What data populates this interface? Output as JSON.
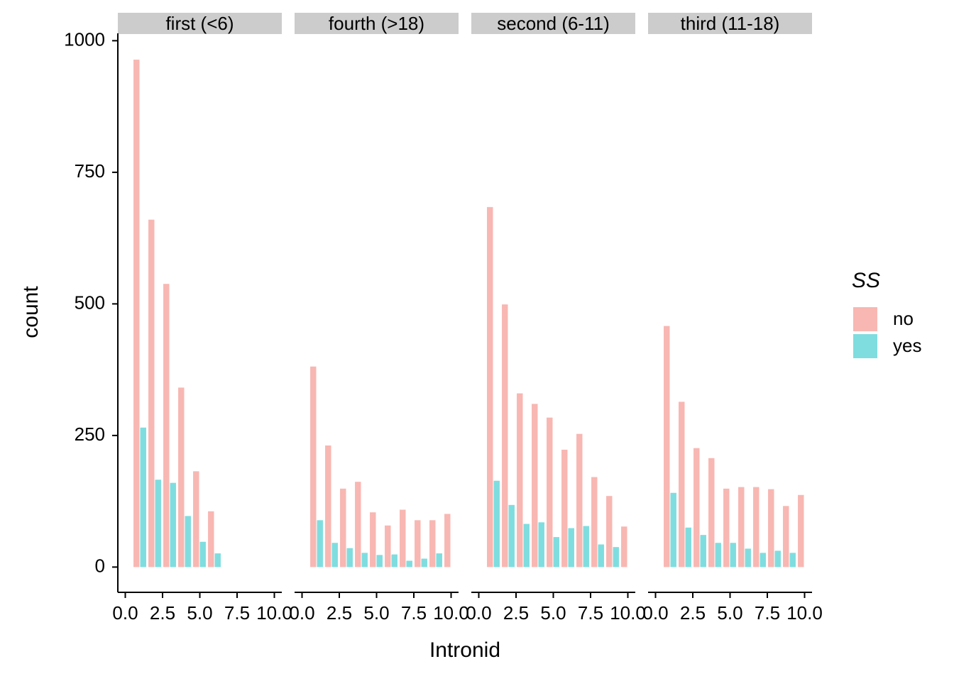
{
  "chart_data": [
    {
      "type": "bar",
      "title": "first (<6)",
      "x": [
        1,
        2,
        3,
        4,
        5,
        6
      ],
      "series": [
        {
          "name": "no",
          "color": "#F8B7B2",
          "values": [
            964,
            660,
            538,
            341,
            182,
            106
          ]
        },
        {
          "name": "yes",
          "color": "#7FDDDF",
          "values": [
            265,
            166,
            160,
            97,
            48,
            26
          ]
        }
      ],
      "xlim": [
        -0.5,
        10.5
      ],
      "xticks": [
        {
          "value": 0,
          "label": "0.0"
        },
        {
          "value": 2.5,
          "label": "2.5"
        },
        {
          "value": 5,
          "label": "5.0"
        },
        {
          "value": 7.5,
          "label": "7.5"
        },
        {
          "value": 10,
          "label": "10.0"
        }
      ],
      "ylim": [
        -48,
        1014
      ],
      "yticks": [
        0,
        250,
        500,
        750,
        1000
      ]
    },
    {
      "type": "bar",
      "title": "fourth (>18)",
      "x": [
        1,
        2,
        3,
        4,
        5,
        6,
        7,
        8,
        9,
        10
      ],
      "series": [
        {
          "name": "no",
          "color": "#F8B7B2",
          "values": [
            381,
            231,
            149,
            162,
            104,
            79,
            109,
            89,
            89,
            101
          ]
        },
        {
          "name": "yes",
          "color": "#7FDDDF",
          "values": [
            89,
            46,
            36,
            27,
            23,
            24,
            12,
            16,
            26,
            null
          ]
        }
      ],
      "xlim": [
        -0.5,
        10.5
      ],
      "xticks": [
        {
          "value": 0,
          "label": "0.0"
        },
        {
          "value": 2.5,
          "label": "2.5"
        },
        {
          "value": 5,
          "label": "5.0"
        },
        {
          "value": 7.5,
          "label": "7.5"
        },
        {
          "value": 10,
          "label": "10.0"
        }
      ],
      "ylim": [
        -48,
        1014
      ]
    },
    {
      "type": "bar",
      "title": "second (6-11)",
      "x": [
        1,
        2,
        3,
        4,
        5,
        6,
        7,
        8,
        9,
        10
      ],
      "series": [
        {
          "name": "no",
          "color": "#F8B7B2",
          "values": [
            684,
            499,
            330,
            310,
            284,
            223,
            253,
            171,
            135,
            77
          ]
        },
        {
          "name": "yes",
          "color": "#7FDDDF",
          "values": [
            164,
            118,
            82,
            85,
            57,
            74,
            78,
            43,
            38,
            null
          ]
        }
      ],
      "xlim": [
        -0.5,
        10.5
      ],
      "xticks": [
        {
          "value": 0,
          "label": "0.0"
        },
        {
          "value": 2.5,
          "label": "2.5"
        },
        {
          "value": 5,
          "label": "5.0"
        },
        {
          "value": 7.5,
          "label": "7.5"
        },
        {
          "value": 10,
          "label": "10.0"
        }
      ],
      "ylim": [
        -48,
        1014
      ]
    },
    {
      "type": "bar",
      "title": "third (11-18)",
      "x": [
        1,
        2,
        3,
        4,
        5,
        6,
        7,
        8,
        9,
        10
      ],
      "series": [
        {
          "name": "no",
          "color": "#F8B7B2",
          "values": [
            458,
            314,
            226,
            207,
            149,
            152,
            152,
            148,
            116,
            137
          ]
        },
        {
          "name": "yes",
          "color": "#7FDDDF",
          "values": [
            141,
            75,
            61,
            46,
            46,
            35,
            27,
            31,
            27,
            null
          ]
        }
      ],
      "xlim": [
        -0.5,
        10.5
      ],
      "xticks": [
        {
          "value": 0,
          "label": "0.0"
        },
        {
          "value": 2.5,
          "label": "2.5"
        },
        {
          "value": 5,
          "label": "5.0"
        },
        {
          "value": 7.5,
          "label": "7.5"
        },
        {
          "value": 10,
          "label": "10.0"
        }
      ],
      "ylim": [
        -48,
        1014
      ]
    }
  ],
  "xlabel": "Intronid",
  "ylabel": "count",
  "legend_title": "SS"
}
